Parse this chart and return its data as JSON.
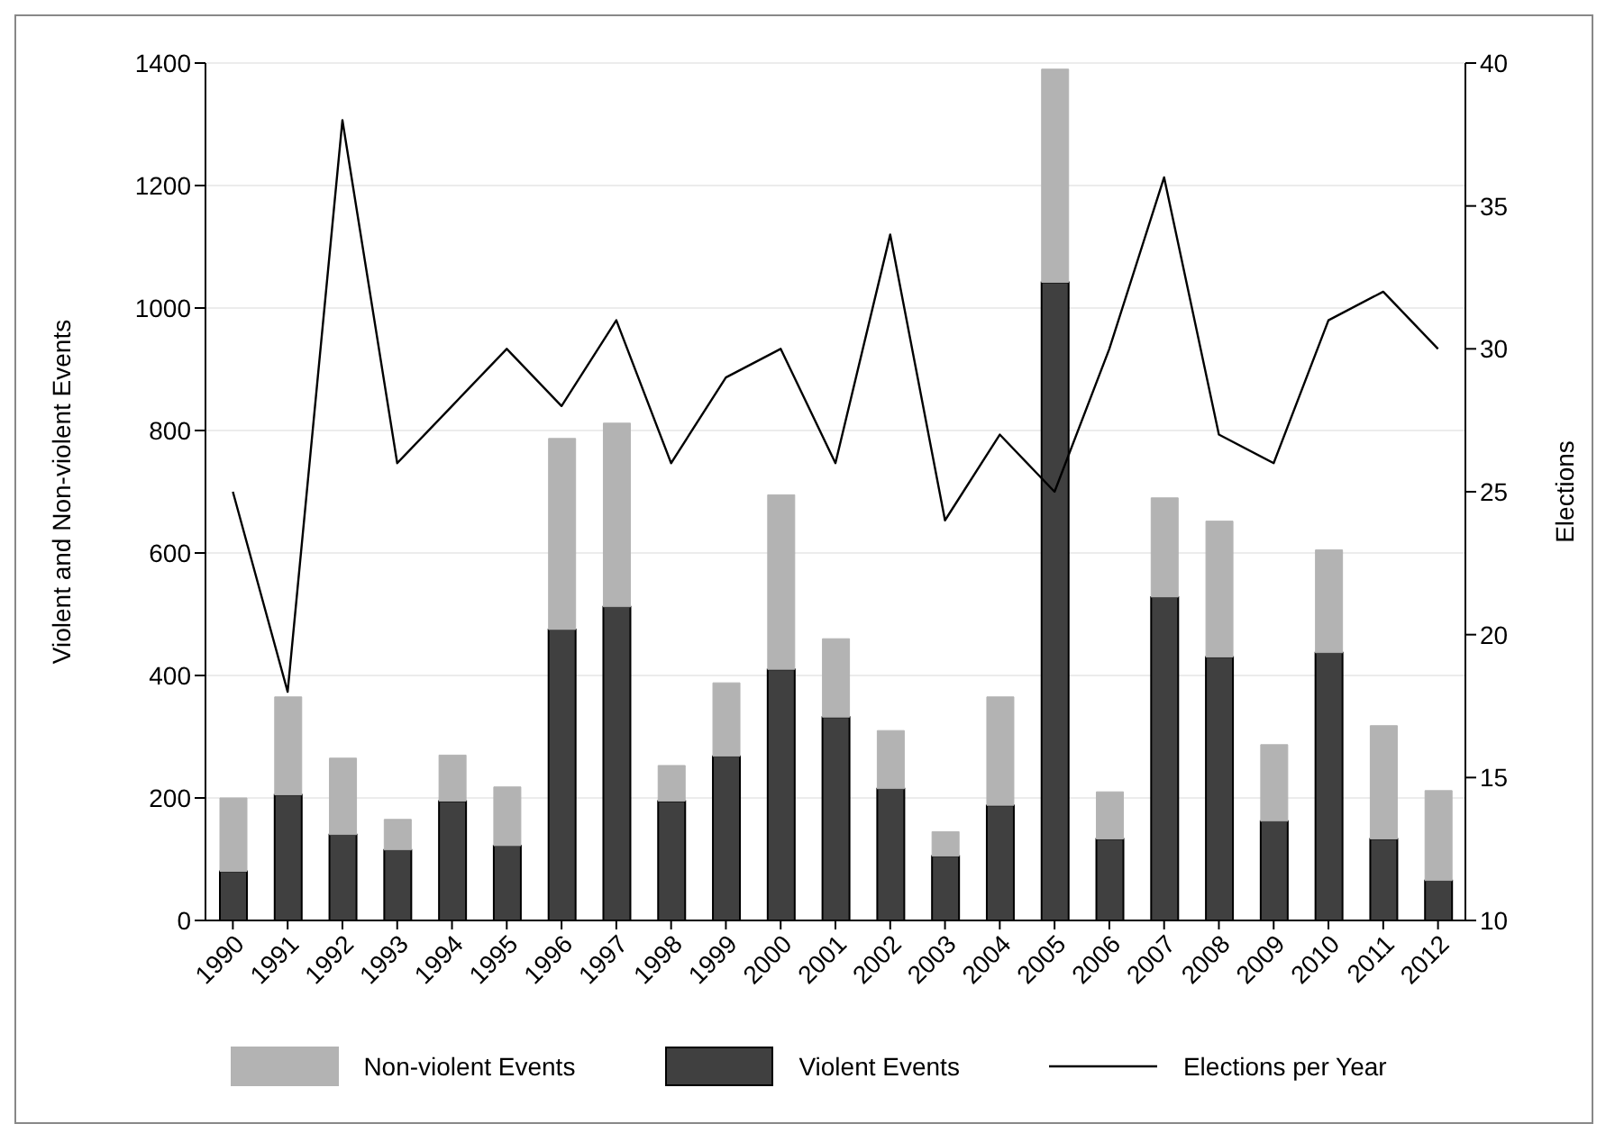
{
  "chart_data": {
    "type": "bar",
    "stacked": true,
    "ylabel": "Violent and Non-violent Events",
    "y2label": "Elections",
    "categories": [
      "1990",
      "1991",
      "1992",
      "1993",
      "1994",
      "1995",
      "1996",
      "1997",
      "1998",
      "1999",
      "2000",
      "2001",
      "2002",
      "2003",
      "2004",
      "2005",
      "2006",
      "2007",
      "2008",
      "2009",
      "2010",
      "2011",
      "2012"
    ],
    "series": [
      {
        "name": "Violent Events",
        "color": "#404040",
        "values": [
          80,
          205,
          140,
          115,
          195,
          122,
          475,
          512,
          195,
          268,
          410,
          332,
          215,
          105,
          188,
          1042,
          133,
          528,
          430,
          162,
          437,
          133,
          65
        ]
      },
      {
        "name": "Non-violent Events",
        "color": "#b3b3b3",
        "values": [
          120,
          160,
          125,
          50,
          75,
          96,
          312,
          300,
          58,
          120,
          285,
          128,
          95,
          40,
          177,
          348,
          77,
          162,
          222,
          125,
          168,
          185,
          147
        ]
      },
      {
        "name": "Elections per Year",
        "type": "line",
        "axis": "y2",
        "color": "#000000",
        "values": [
          25,
          18,
          38,
          26,
          28,
          30,
          28,
          31,
          26,
          29,
          30,
          26,
          34,
          24,
          27,
          25,
          30,
          36,
          27,
          26,
          31,
          32,
          30
        ]
      }
    ],
    "ylim": [
      0,
      1400
    ],
    "yticks": [
      0,
      200,
      400,
      600,
      800,
      1000,
      1200,
      1400
    ],
    "y2lim": [
      10,
      40
    ],
    "y2ticks": [
      10,
      15,
      20,
      25,
      30,
      35,
      40
    ],
    "grid": "y",
    "legend": "bottom",
    "marker": "none"
  }
}
